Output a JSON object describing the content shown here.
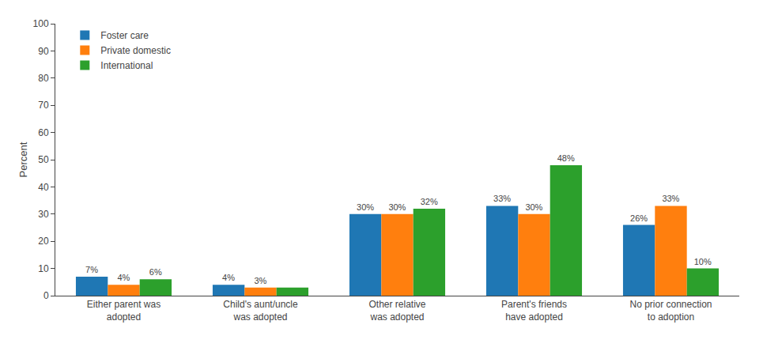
{
  "chart_data": {
    "type": "bar",
    "categories": [
      "Either parent was\nadopted",
      "Child's aunt/uncle\nwas adopted",
      "Other relative\nwas adopted",
      "Parent's friends\nhave adopted",
      "No prior connection\nto adoption"
    ],
    "series": [
      {
        "name": "Foster care",
        "values": [
          7,
          4,
          30,
          33,
          26
        ],
        "value_labels": [
          "7%",
          "4%",
          "30%",
          "33%",
          "26%"
        ]
      },
      {
        "name": "Private domestic",
        "values": [
          4,
          3,
          30,
          30,
          33
        ],
        "value_labels": [
          "4%",
          "3%",
          "30%",
          "30%",
          "33%"
        ]
      },
      {
        "name": "International",
        "values": [
          6,
          3,
          32,
          48,
          10
        ],
        "value_labels": [
          "6%",
          null,
          "32%",
          "48%",
          "10%"
        ]
      }
    ],
    "y_label": "Percent",
    "ylim": [
      0,
      100
    ],
    "yticks": [
      0,
      10,
      20,
      30,
      40,
      50,
      60,
      70,
      80,
      90,
      100
    ],
    "grid": false,
    "legend": "upper left",
    "data_labels": true
  }
}
